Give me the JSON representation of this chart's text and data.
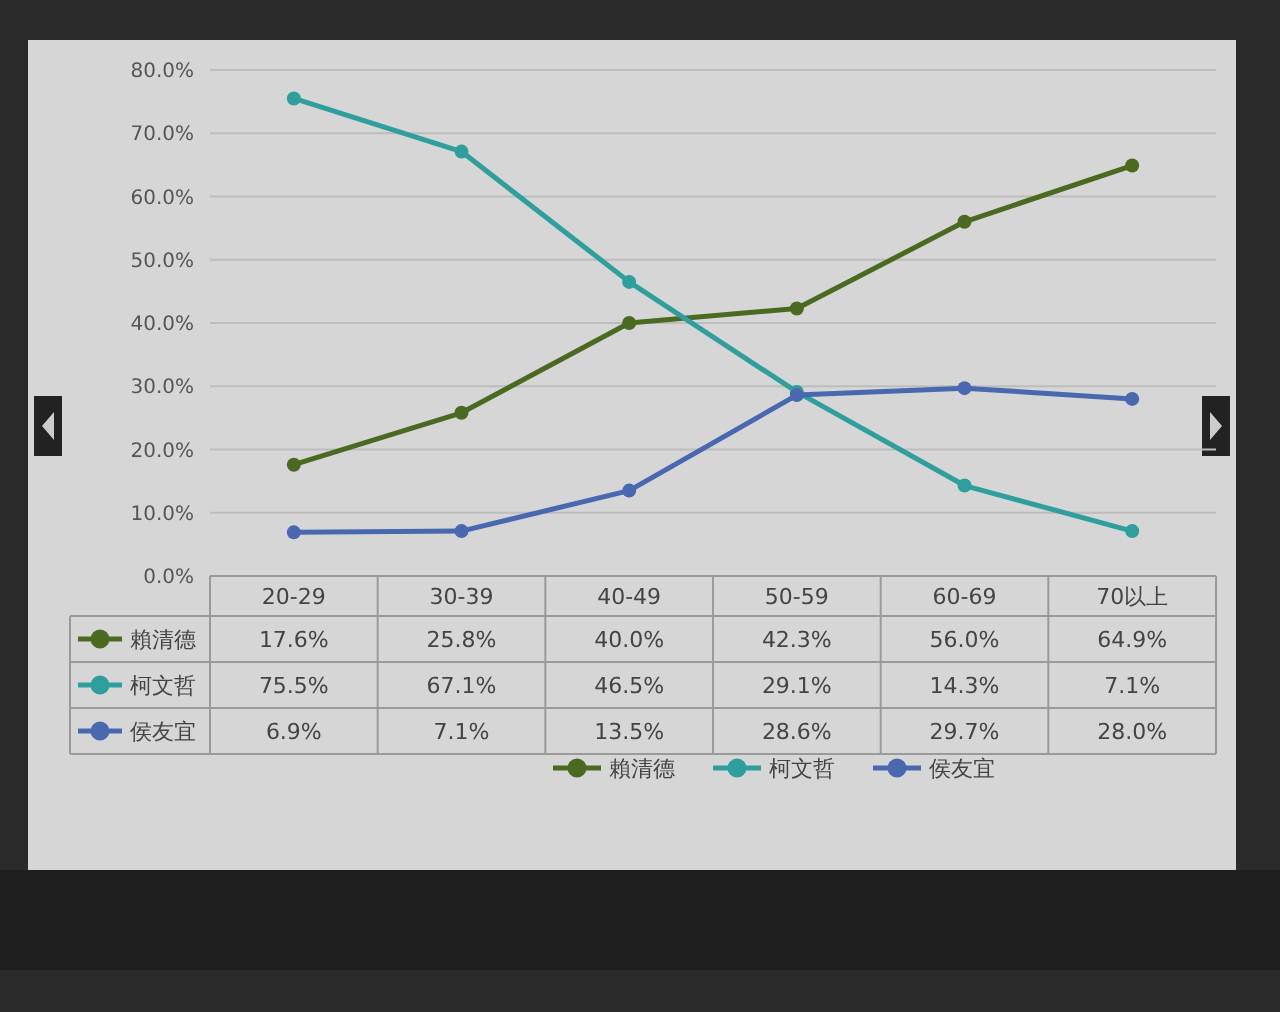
{
  "chart_data": {
    "type": "line",
    "categories": [
      "20-29",
      "30-39",
      "40-49",
      "50-59",
      "60-69",
      "70以上"
    ],
    "ylim": [
      0,
      80
    ],
    "yticks": [
      {
        "value": 0,
        "label": "0.0%"
      },
      {
        "value": 10,
        "label": "10.0%"
      },
      {
        "value": 20,
        "label": "20.0%"
      },
      {
        "value": 30,
        "label": "30.0%"
      },
      {
        "value": 40,
        "label": "40.0%"
      },
      {
        "value": 50,
        "label": "50.0%"
      },
      {
        "value": 60,
        "label": "60.0%"
      },
      {
        "value": 70,
        "label": "70.0%"
      },
      {
        "value": 80,
        "label": "80.0%"
      }
    ],
    "grid": "y",
    "legend": "bottom",
    "marker": "circle",
    "line_style": "solid",
    "series": [
      {
        "name": "賴清德",
        "color": "#4a6a22",
        "values": [
          17.6,
          25.8,
          40.0,
          42.3,
          56.0,
          64.9
        ],
        "value_labels": [
          "17.6%",
          "25.8%",
          "40.0%",
          "42.3%",
          "56.0%",
          "64.9%"
        ]
      },
      {
        "name": "柯文哲",
        "color": "#2e9f9c",
        "values": [
          75.5,
          67.1,
          46.5,
          29.1,
          14.3,
          7.1
        ],
        "value_labels": [
          "75.5%",
          "67.1%",
          "46.5%",
          "29.1%",
          "14.3%",
          "7.1%"
        ]
      },
      {
        "name": "侯友宜",
        "color": "#4a68b0",
        "values": [
          6.9,
          7.1,
          13.5,
          28.6,
          29.7,
          28.0
        ],
        "value_labels": [
          "6.9%",
          "7.1%",
          "13.5%",
          "28.6%",
          "29.7%",
          "28.0%"
        ]
      }
    ]
  }
}
